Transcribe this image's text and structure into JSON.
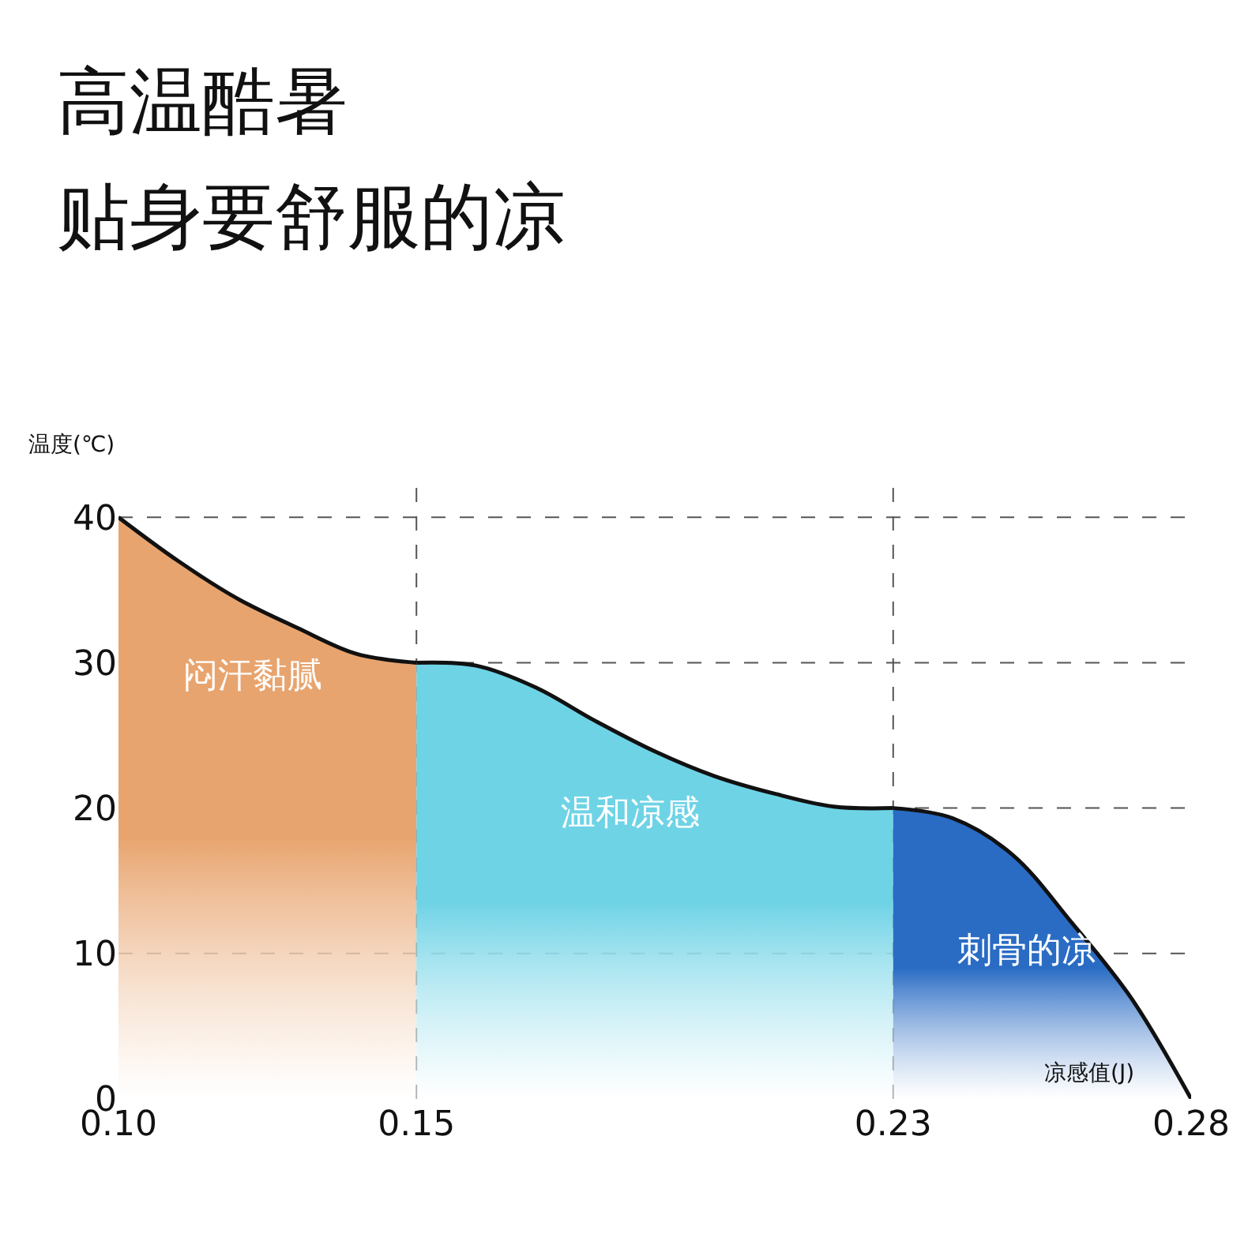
{
  "chart_data": {
    "type": "area",
    "title": "高温酷暑",
    "subtitle": "贴身要舒服的凉",
    "ylabel": "温度(℃)",
    "xlabel": "凉感值(J)",
    "xlim": [
      0.1,
      0.28
    ],
    "xticks": [
      {
        "value": 0.1,
        "label": "0.10"
      },
      {
        "value": 0.15,
        "label": "0.15"
      },
      {
        "value": 0.23,
        "label": "0.23"
      },
      {
        "value": 0.28,
        "label": "0.28"
      }
    ],
    "ylim": [
      0,
      43
    ],
    "yticks": [
      0,
      10,
      20,
      30,
      40
    ],
    "grid": false,
    "legend": false,
    "series": [
      {
        "name": "闷汗黏腻",
        "color": "#e8a46e",
        "x": [
          0.1,
          0.11,
          0.12,
          0.13,
          0.14,
          0.15
        ],
        "values": [
          40,
          37,
          34.4,
          32.4,
          30.6,
          30
        ]
      },
      {
        "name": "温和凉感",
        "color": "#6fd3e6",
        "x": [
          0.15,
          0.16,
          0.17,
          0.18,
          0.19,
          0.2,
          0.21,
          0.22,
          0.23
        ],
        "values": [
          30,
          29.8,
          28.3,
          26,
          23.9,
          22.2,
          21,
          20.1,
          20
        ]
      },
      {
        "name": "刺骨的凉",
        "color": "#2a6cc4",
        "x": [
          0.23,
          0.24,
          0.25,
          0.26,
          0.27,
          0.28
        ],
        "values": [
          20,
          19.3,
          16.8,
          12.1,
          6.9,
          0
        ]
      }
    ],
    "ref_lines": [
      {
        "axis": "y",
        "value": 40,
        "line_style": "dashed"
      },
      {
        "axis": "y",
        "value": 30,
        "line_style": "dashed"
      },
      {
        "axis": "y",
        "value": 20,
        "line_style": "dashed"
      },
      {
        "axis": "y",
        "value": 10,
        "line_style": "dashed"
      },
      {
        "axis": "x",
        "value": 0.15,
        "line_style": "dashed"
      },
      {
        "axis": "x",
        "value": 0.23,
        "line_style": "dashed"
      }
    ]
  }
}
